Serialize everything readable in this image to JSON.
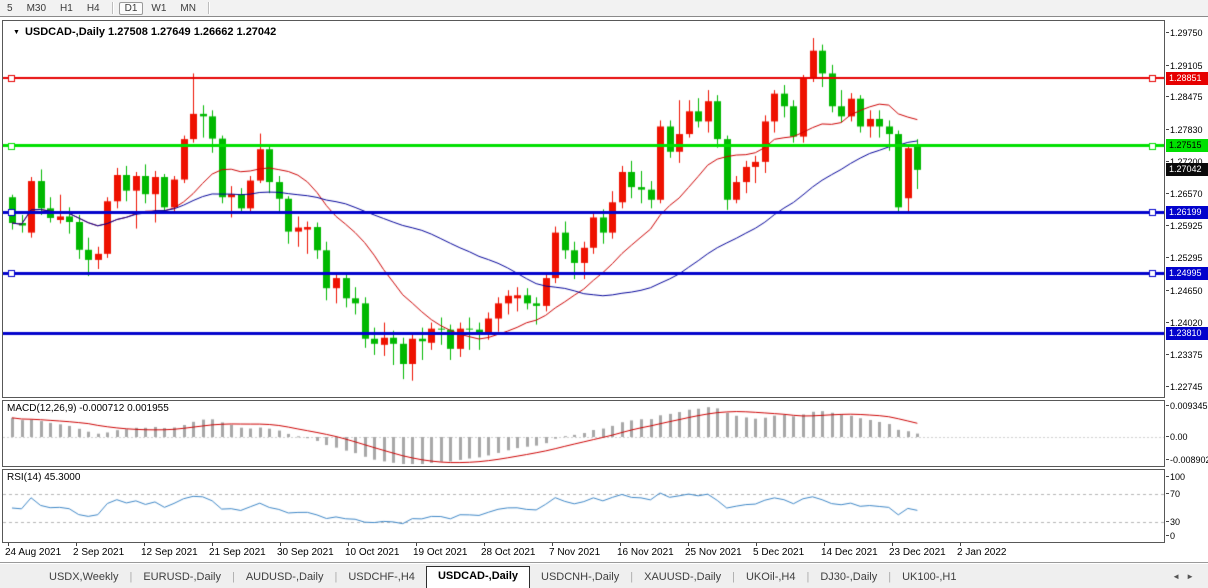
{
  "toolbar": {
    "items": [
      "5",
      "M30",
      "H1",
      "H4",
      "D1",
      "W1",
      "MN"
    ],
    "active": "D1",
    "separator_after_indexes": [
      3,
      6
    ]
  },
  "chart": {
    "title": "USDCAD-,Daily  1.27508 1.27649 1.26662 1.27042",
    "dropdown_glyph": "▼"
  },
  "indicators": {
    "macd_label": "MACD(12,26,9) -0.000712 0.001955",
    "rsi_label": "RSI(14) 45.3000"
  },
  "axes": {
    "price_labels": [
      "1.29750",
      "1.29105",
      "1.28475",
      "1.27830",
      "1.27200",
      "1.26570",
      "1.25925",
      "1.25295",
      "1.24650",
      "1.24020",
      "1.23375",
      "1.22745"
    ],
    "macd_labels": [
      {
        "text": "0.009345",
        "value": 0.009345
      },
      {
        "text": "0.00",
        "value": 0
      },
      {
        "text": "-0.008902",
        "value": -0.008902
      }
    ],
    "rsi_labels": [
      {
        "text": "100",
        "value": 100
      },
      {
        "text": "70",
        "value": 70
      },
      {
        "text": "30",
        "value": 30
      },
      {
        "text": "0",
        "value": 0
      }
    ],
    "date_labels": [
      "24 Aug 2021",
      "2 Sep 2021",
      "12 Sep 2021",
      "21 Sep 2021",
      "30 Sep 2021",
      "10 Oct 2021",
      "19 Oct 2021",
      "28 Oct 2021",
      "7 Nov 2021",
      "16 Nov 2021",
      "25 Nov 2021",
      "5 Dec 2021",
      "14 Dec 2021",
      "23 Dec 2021",
      "2 Jan 2022"
    ]
  },
  "price_lines": [
    {
      "price": 1.28851,
      "label": "1.28851",
      "color": "#e60000",
      "text_color": "#ffffff",
      "width": 2,
      "handles": true
    },
    {
      "price": 1.27515,
      "label": "1.27515",
      "color": "#00e000",
      "text_color": "#000000",
      "width": 3,
      "handles": true
    },
    {
      "price": 1.26199,
      "label": "1.26199",
      "color": "#0202cc",
      "text_color": "#ffffff",
      "width": 3,
      "handles": true
    },
    {
      "price": 1.24995,
      "label": "1.24995",
      "color": "#0202cc",
      "text_color": "#ffffff",
      "width": 3,
      "handles": true
    },
    {
      "price": 1.2381,
      "label": "1.23810",
      "color": "#0202cc",
      "text_color": "#ffffff",
      "width": 3,
      "handles": false
    }
  ],
  "current_price": {
    "price": 1.27042,
    "label": "1.27042",
    "bg": "#0a0a0a",
    "text_color": "#ffffff"
  },
  "chart_data": {
    "type": "candlestick",
    "symbol": "USDCAD-",
    "timeframe": "Daily",
    "ohlc_display": {
      "open": "1.27508",
      "high": "1.27649",
      "low": "1.26662",
      "close": "1.27042"
    },
    "price_top": 1.2975,
    "price_bottom": 1.22745,
    "bull_color": "#ee1100",
    "bear_color": "#00b800",
    "ma_fast": {
      "period": 13,
      "color": "#cc0000"
    },
    "ma_slow": {
      "period": 34,
      "color": "#000099"
    },
    "macd": {
      "fast": 12,
      "slow": 26,
      "signal": 9,
      "value": -0.000712,
      "signal_value": 0.001955,
      "hist_color": "#a8a8a8",
      "signal_color": "#cc0000",
      "zero_line_color": "#cfcfcf",
      "axis_max": 0.009345,
      "axis_min": -0.008902
    },
    "rsi": {
      "period": 14,
      "current": 45.3,
      "color": "#3d86c6",
      "levels": [
        70,
        30
      ],
      "level_color": "#b4b4b4"
    },
    "candles": [
      [
        1.265,
        1.2655,
        1.2586,
        1.2599
      ],
      [
        1.2599,
        1.2615,
        1.258,
        1.2594
      ],
      [
        1.258,
        1.269,
        1.257,
        1.2682
      ],
      [
        1.2682,
        1.2705,
        1.2615,
        1.2628
      ],
      [
        1.2628,
        1.265,
        1.26,
        1.2609
      ],
      [
        1.2605,
        1.2655,
        1.2598,
        1.2612
      ],
      [
        1.2612,
        1.263,
        1.2578,
        1.2601
      ],
      [
        1.2601,
        1.2615,
        1.2528,
        1.2546
      ],
      [
        1.2546,
        1.257,
        1.2494,
        1.2526
      ],
      [
        1.2526,
        1.2552,
        1.2508,
        1.2538
      ],
      [
        1.2538,
        1.265,
        1.253,
        1.2642
      ],
      [
        1.2642,
        1.2708,
        1.2628,
        1.2694
      ],
      [
        1.2694,
        1.2712,
        1.2642,
        1.2663
      ],
      [
        1.2663,
        1.27,
        1.2588,
        1.2692
      ],
      [
        1.2692,
        1.2715,
        1.2638,
        1.2656
      ],
      [
        1.2656,
        1.2702,
        1.26,
        1.269
      ],
      [
        1.269,
        1.2696,
        1.2618,
        1.263
      ],
      [
        1.263,
        1.2692,
        1.2618,
        1.2685
      ],
      [
        1.2685,
        1.2772,
        1.2678,
        1.2765
      ],
      [
        1.2765,
        1.2895,
        1.2758,
        1.2815
      ],
      [
        1.2815,
        1.2832,
        1.2768,
        1.281
      ],
      [
        1.281,
        1.2822,
        1.2738,
        1.2766
      ],
      [
        1.2766,
        1.2772,
        1.2638,
        1.265
      ],
      [
        1.265,
        1.2672,
        1.261,
        1.2656
      ],
      [
        1.2656,
        1.2668,
        1.2618,
        1.2628
      ],
      [
        1.2628,
        1.2692,
        1.262,
        1.2683
      ],
      [
        1.2683,
        1.2776,
        1.2678,
        1.2745
      ],
      [
        1.2745,
        1.2752,
        1.2658,
        1.268
      ],
      [
        1.268,
        1.2692,
        1.2618,
        1.2647
      ],
      [
        1.2647,
        1.2652,
        1.2558,
        1.2582
      ],
      [
        1.2582,
        1.2612,
        1.2552,
        1.259
      ],
      [
        1.2586,
        1.2602,
        1.2538,
        1.2591
      ],
      [
        1.2591,
        1.26,
        1.2528,
        1.2545
      ],
      [
        1.2545,
        1.2562,
        1.2446,
        1.247
      ],
      [
        1.247,
        1.2502,
        1.244,
        1.249
      ],
      [
        1.249,
        1.2498,
        1.2432,
        1.245
      ],
      [
        1.245,
        1.2472,
        1.2418,
        1.244
      ],
      [
        1.244,
        1.2452,
        1.2352,
        1.237
      ],
      [
        1.237,
        1.2392,
        1.2338,
        1.236
      ],
      [
        1.2358,
        1.2402,
        1.2336,
        1.2372
      ],
      [
        1.2372,
        1.2386,
        1.2318,
        1.236
      ],
      [
        1.236,
        1.2372,
        1.229,
        1.232
      ],
      [
        1.232,
        1.2382,
        1.2287,
        1.237
      ],
      [
        1.237,
        1.2392,
        1.2328,
        1.2365
      ],
      [
        1.2362,
        1.2402,
        1.2348,
        1.239
      ],
      [
        1.239,
        1.2412,
        1.2358,
        1.2388
      ],
      [
        1.2388,
        1.2398,
        1.2328,
        1.235
      ],
      [
        1.235,
        1.2402,
        1.2334,
        1.239
      ],
      [
        1.239,
        1.2412,
        1.2348,
        1.2388
      ],
      [
        1.2388,
        1.2402,
        1.2348,
        1.238
      ],
      [
        1.238,
        1.2422,
        1.2368,
        1.241
      ],
      [
        1.241,
        1.2452,
        1.2384,
        1.244
      ],
      [
        1.244,
        1.2466,
        1.2418,
        1.2455
      ],
      [
        1.245,
        1.2472,
        1.2424,
        1.2456
      ],
      [
        1.2456,
        1.247,
        1.2428,
        1.244
      ],
      [
        1.244,
        1.2452,
        1.2398,
        1.2435
      ],
      [
        1.2435,
        1.2502,
        1.2424,
        1.249
      ],
      [
        1.249,
        1.2592,
        1.248,
        1.258
      ],
      [
        1.258,
        1.2602,
        1.2528,
        1.2545
      ],
      [
        1.2545,
        1.2562,
        1.2488,
        1.252
      ],
      [
        1.252,
        1.2562,
        1.2488,
        1.255
      ],
      [
        1.255,
        1.2622,
        1.2538,
        1.261
      ],
      [
        1.261,
        1.2626,
        1.2558,
        1.258
      ],
      [
        1.258,
        1.2662,
        1.2568,
        1.264
      ],
      [
        1.264,
        1.2712,
        1.2628,
        1.27
      ],
      [
        1.27,
        1.2722,
        1.2648,
        1.267
      ],
      [
        1.267,
        1.2702,
        1.2638,
        1.2665
      ],
      [
        1.2665,
        1.2682,
        1.2628,
        1.2645
      ],
      [
        1.2645,
        1.2802,
        1.2638,
        1.279
      ],
      [
        1.279,
        1.2802,
        1.2728,
        1.274
      ],
      [
        1.274,
        1.2842,
        1.2718,
        1.2775
      ],
      [
        1.2775,
        1.2842,
        1.2768,
        1.282
      ],
      [
        1.282,
        1.2846,
        1.2788,
        1.28
      ],
      [
        1.28,
        1.2862,
        1.2778,
        1.284
      ],
      [
        1.284,
        1.2852,
        1.2748,
        1.2765
      ],
      [
        1.2765,
        1.2772,
        1.2625,
        1.2645
      ],
      [
        1.2645,
        1.2692,
        1.2638,
        1.268
      ],
      [
        1.268,
        1.2722,
        1.2658,
        1.271
      ],
      [
        1.271,
        1.2732,
        1.2678,
        1.272
      ],
      [
        1.272,
        1.2812,
        1.2698,
        1.28
      ],
      [
        1.28,
        1.2862,
        1.2778,
        1.2855
      ],
      [
        1.2855,
        1.2872,
        1.2808,
        1.283
      ],
      [
        1.283,
        1.2842,
        1.2758,
        1.277
      ],
      [
        1.277,
        1.2892,
        1.2758,
        1.2885
      ],
      [
        1.2885,
        1.2965,
        1.2878,
        1.294
      ],
      [
        1.294,
        1.2952,
        1.2868,
        1.2895
      ],
      [
        1.2895,
        1.2912,
        1.2818,
        1.283
      ],
      [
        1.283,
        1.2862,
        1.2798,
        1.281
      ],
      [
        1.281,
        1.2856,
        1.28,
        1.2845
      ],
      [
        1.2845,
        1.2852,
        1.2778,
        1.279
      ],
      [
        1.279,
        1.2822,
        1.2768,
        1.2805
      ],
      [
        1.2805,
        1.2822,
        1.2768,
        1.279
      ],
      [
        1.279,
        1.2802,
        1.2742,
        1.2775
      ],
      [
        1.2775,
        1.2782,
        1.2622,
        1.263
      ],
      [
        1.2648,
        1.2755,
        1.262,
        1.2747
      ],
      [
        1.27508,
        1.27649,
        1.26662,
        1.27042
      ]
    ]
  },
  "tabs": {
    "items": [
      "USDX,Weekly",
      "EURUSD-,Daily",
      "AUDUSD-,Daily",
      "USDCHF-,H4",
      "USDCAD-,Daily",
      "USDCNH-,Daily",
      "XAUUSD-,Daily",
      "UKOil-,H4",
      "DJ30-,Daily",
      "UK100-,H1"
    ],
    "active_index": 4,
    "scroll_left": "◄",
    "scroll_right": "►"
  }
}
